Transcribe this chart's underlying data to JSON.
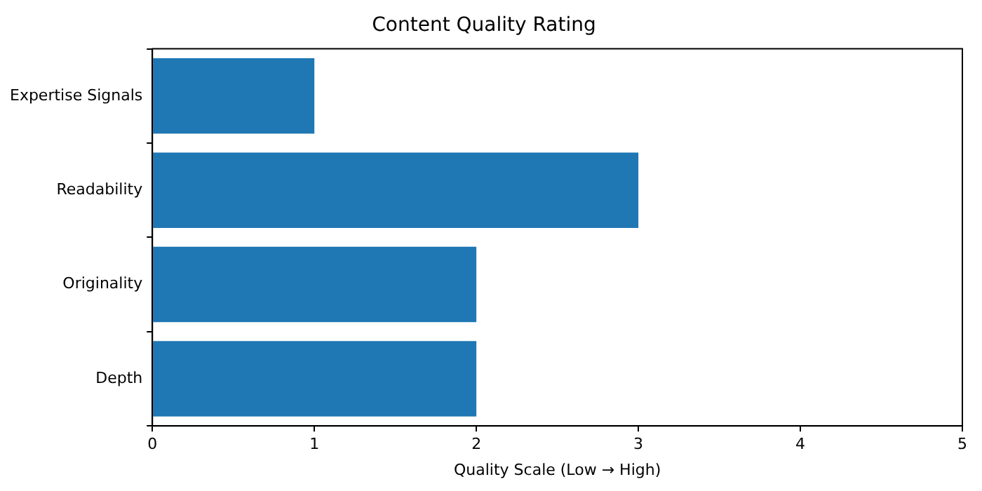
{
  "chart_data": {
    "type": "bar",
    "orientation": "horizontal",
    "title": "Content Quality Rating",
    "xlabel": "Quality Scale (Low → High)",
    "categories": [
      "Expertise Signals",
      "Readability",
      "Originality",
      "Depth"
    ],
    "values": [
      1,
      3,
      2,
      2
    ],
    "color": "#1f77b4",
    "xlim": [
      0,
      5
    ],
    "xticks": [
      0,
      1,
      2,
      3,
      4,
      5
    ],
    "grid": false,
    "legend": false
  }
}
